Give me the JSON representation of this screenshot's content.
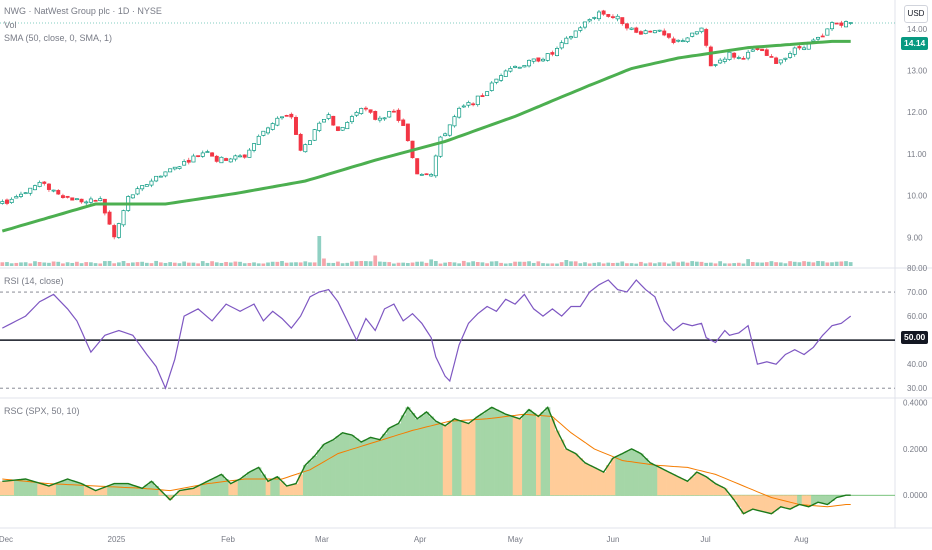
{
  "legend": {
    "title": "NWG · NatWest Group plc · 1D · NYSE",
    "vol": "Vol",
    "sma": "SMA (50, close, 0, SMA, 1)",
    "rsi": "RSI (14, close)",
    "rsc": "RSC (SPX, 50, 10)"
  },
  "toolbar": {
    "currency": "USD"
  },
  "price_tag": "14.14",
  "rsi_tag": "50.00",
  "colors": {
    "up": "#089981",
    "down": "#f23645",
    "sma": "#4caf50",
    "rsi": "#7e57c2",
    "rsc_line": "#1b7a1b",
    "rsc_signal": "#f57c00",
    "fill_pos": "#a5d6a7",
    "fill_neg": "#ffcc99"
  },
  "chart_data": [
    {
      "type": "candlestick",
      "x_ticks": [
        "Dec",
        "2025",
        "Feb",
        "Mar",
        "Apr",
        "May",
        "Jun",
        "Jul",
        "Aug"
      ],
      "y_ticks": [
        "9.00",
        "10.00",
        "11.00",
        "12.00",
        "13.00",
        "14.00"
      ],
      "ylim": [
        8.6,
        14.5
      ],
      "close_anchors": [
        [
          0,
          9.8
        ],
        [
          8,
          10.3
        ],
        [
          14,
          9.95
        ],
        [
          18,
          9.85
        ],
        [
          21,
          9.9
        ],
        [
          24,
          9.0
        ],
        [
          27,
          9.95
        ],
        [
          33,
          10.45
        ],
        [
          39,
          10.8
        ],
        [
          44,
          11.1
        ],
        [
          46,
          10.85
        ],
        [
          52,
          10.95
        ],
        [
          56,
          11.55
        ],
        [
          59,
          11.85
        ],
        [
          62,
          11.9
        ],
        [
          64,
          11.05
        ],
        [
          70,
          12.0
        ],
        [
          72,
          11.5
        ],
        [
          77,
          12.15
        ],
        [
          80,
          11.85
        ],
        [
          84,
          12.0
        ],
        [
          86,
          11.65
        ],
        [
          89,
          10.55
        ],
        [
          92,
          10.55
        ],
        [
          94,
          11.35
        ],
        [
          98,
          12.05
        ],
        [
          103,
          12.4
        ],
        [
          108,
          13.05
        ],
        [
          112,
          13.15
        ],
        [
          118,
          13.4
        ],
        [
          124,
          14.05
        ],
        [
          128,
          14.4
        ],
        [
          132,
          14.25
        ],
        [
          136,
          13.9
        ],
        [
          140,
          14.0
        ],
        [
          144,
          13.65
        ],
        [
          148,
          13.85
        ],
        [
          150,
          14.0
        ],
        [
          152,
          13.1
        ],
        [
          156,
          13.4
        ],
        [
          158,
          13.3
        ],
        [
          162,
          13.5
        ],
        [
          166,
          13.2
        ],
        [
          170,
          13.5
        ],
        [
          176,
          13.8
        ],
        [
          178,
          14.14
        ]
      ],
      "sma_anchors": [
        [
          0,
          9.15
        ],
        [
          20,
          9.8
        ],
        [
          35,
          9.8
        ],
        [
          50,
          10.05
        ],
        [
          65,
          10.35
        ],
        [
          80,
          10.85
        ],
        [
          95,
          11.3
        ],
        [
          110,
          11.9
        ],
        [
          125,
          12.6
        ],
        [
          135,
          13.05
        ],
        [
          145,
          13.3
        ],
        [
          160,
          13.55
        ],
        [
          178,
          13.7
        ]
      ],
      "vol_up": [
        false,
        true,
        true,
        false,
        true,
        true,
        false,
        true,
        false,
        true,
        true,
        false,
        true,
        false,
        true,
        true,
        false,
        true,
        false,
        true,
        true,
        false,
        true,
        true,
        false,
        true,
        true,
        false,
        true,
        false,
        true,
        true,
        false,
        true,
        false,
        true,
        true,
        false,
        true,
        true,
        false,
        true,
        false,
        true,
        true,
        false,
        true,
        true,
        false,
        true,
        false,
        true,
        true,
        false,
        true,
        true,
        false,
        true,
        true,
        false,
        true,
        false,
        true,
        true,
        false,
        true,
        true,
        false,
        true,
        false,
        true,
        true,
        false,
        true,
        true,
        false,
        true,
        false,
        true,
        true,
        false,
        true,
        true,
        false,
        true,
        false,
        true,
        true,
        false,
        true,
        true,
        false,
        true,
        true,
        false,
        true,
        false,
        true,
        true,
        false,
        true,
        true,
        false,
        true,
        false,
        true,
        true,
        false,
        true,
        true,
        false,
        true,
        false,
        true,
        true,
        false,
        true,
        true,
        false,
        true,
        false,
        true,
        true,
        false,
        true,
        true,
        false,
        true,
        true,
        false,
        true,
        false,
        true,
        true,
        false,
        true,
        true,
        false,
        true,
        false,
        true,
        true,
        false,
        true,
        true,
        false,
        true,
        false,
        true,
        true,
        false,
        true,
        true,
        false,
        true,
        true,
        false,
        true,
        false,
        true,
        true,
        false,
        true,
        true,
        false,
        true,
        false,
        true,
        true,
        false,
        true,
        true,
        false,
        true,
        false,
        true,
        true
      ],
      "vol_spikes": {
        "68": 10,
        "80": 3.5,
        "69": 2.5,
        "92": 2.2,
        "121": 2.0,
        "160": 2.3
      }
    },
    {
      "type": "line",
      "name": "RSI (14, close)",
      "y_ticks": [
        "30.00",
        "40.00",
        "50.00",
        "60.00",
        "70.00",
        "80.00"
      ],
      "ylim": [
        28,
        80
      ],
      "bands": [
        30,
        50,
        70
      ],
      "rsi_anchors": [
        [
          0,
          55
        ],
        [
          5,
          60
        ],
        [
          8,
          66
        ],
        [
          11,
          69
        ],
        [
          14,
          63
        ],
        [
          16,
          58
        ],
        [
          19,
          45
        ],
        [
          22,
          52
        ],
        [
          25,
          54
        ],
        [
          28,
          52
        ],
        [
          31,
          44
        ],
        [
          33,
          39
        ],
        [
          35,
          30
        ],
        [
          37,
          42
        ],
        [
          39,
          60
        ],
        [
          42,
          63
        ],
        [
          45,
          58
        ],
        [
          48,
          65
        ],
        [
          51,
          62
        ],
        [
          54,
          65
        ],
        [
          56,
          58
        ],
        [
          58,
          62
        ],
        [
          60,
          59
        ],
        [
          62,
          55
        ],
        [
          64,
          60
        ],
        [
          66,
          68
        ],
        [
          68,
          70
        ],
        [
          70,
          71
        ],
        [
          72,
          66
        ],
        [
          74,
          58
        ],
        [
          76,
          50
        ],
        [
          78,
          59
        ],
        [
          80,
          54
        ],
        [
          82,
          63
        ],
        [
          84,
          65
        ],
        [
          86,
          58
        ],
        [
          88,
          61
        ],
        [
          90,
          57
        ],
        [
          92,
          51
        ],
        [
          93,
          43
        ],
        [
          95,
          35
        ],
        [
          96,
          33
        ],
        [
          98,
          48
        ],
        [
          100,
          57
        ],
        [
          102,
          61
        ],
        [
          104,
          64
        ],
        [
          106,
          62
        ],
        [
          108,
          67
        ],
        [
          110,
          65
        ],
        [
          112,
          69
        ],
        [
          114,
          63
        ],
        [
          116,
          60
        ],
        [
          118,
          63
        ],
        [
          120,
          60
        ],
        [
          122,
          64
        ],
        [
          124,
          64
        ],
        [
          126,
          70
        ],
        [
          128,
          73
        ],
        [
          130,
          75
        ],
        [
          132,
          71
        ],
        [
          134,
          70
        ],
        [
          136,
          75
        ],
        [
          138,
          71
        ],
        [
          140,
          68
        ],
        [
          142,
          58
        ],
        [
          144,
          54
        ],
        [
          146,
          57
        ],
        [
          148,
          56
        ],
        [
          150,
          57
        ],
        [
          151,
          51
        ],
        [
          153,
          49
        ],
        [
          155,
          54
        ],
        [
          156,
          52
        ],
        [
          158,
          53
        ],
        [
          160,
          56
        ],
        [
          162,
          40
        ],
        [
          164,
          41
        ],
        [
          166,
          40
        ],
        [
          168,
          44
        ],
        [
          170,
          46
        ],
        [
          172,
          44
        ],
        [
          174,
          47
        ],
        [
          176,
          52
        ],
        [
          178,
          56
        ],
        [
          180,
          57
        ],
        [
          182,
          60
        ]
      ]
    },
    {
      "type": "area",
      "name": "RSC (SPX, 50, 10)",
      "y_ticks": [
        "0.0000",
        "0.2000",
        "0.4000"
      ],
      "ylim": [
        -0.12,
        0.42
      ],
      "rsc_anchors": [
        [
          0,
          0.06
        ],
        [
          5,
          0.07
        ],
        [
          10,
          0.04
        ],
        [
          14,
          0.07
        ],
        [
          17,
          0.05
        ],
        [
          20,
          0.02
        ],
        [
          24,
          0.05
        ],
        [
          27,
          0.05
        ],
        [
          30,
          0.03
        ],
        [
          32,
          0.06
        ],
        [
          34,
          0.02
        ],
        [
          36,
          -0.02
        ],
        [
          38,
          0.02
        ],
        [
          41,
          0.03
        ],
        [
          44,
          0.06
        ],
        [
          47,
          0.09
        ],
        [
          49,
          0.05
        ],
        [
          51,
          0.07
        ],
        [
          53,
          0.1
        ],
        [
          55,
          0.12
        ],
        [
          57,
          0.06
        ],
        [
          59,
          0.08
        ],
        [
          61,
          0.04
        ],
        [
          63,
          0.05
        ],
        [
          65,
          0.13
        ],
        [
          67,
          0.17
        ],
        [
          69,
          0.22
        ],
        [
          71,
          0.24
        ],
        [
          73,
          0.27
        ],
        [
          75,
          0.26
        ],
        [
          77,
          0.23
        ],
        [
          79,
          0.25
        ],
        [
          81,
          0.24
        ],
        [
          83,
          0.29
        ],
        [
          85,
          0.31
        ],
        [
          87,
          0.38
        ],
        [
          89,
          0.33
        ],
        [
          91,
          0.36
        ],
        [
          93,
          0.32
        ],
        [
          95,
          0.3
        ],
        [
          97,
          0.33
        ],
        [
          100,
          0.31
        ],
        [
          102,
          0.34
        ],
        [
          105,
          0.38
        ],
        [
          108,
          0.35
        ],
        [
          111,
          0.33
        ],
        [
          113,
          0.37
        ],
        [
          115,
          0.34
        ],
        [
          117,
          0.38
        ],
        [
          119,
          0.28
        ],
        [
          121,
          0.2
        ],
        [
          123,
          0.18
        ],
        [
          125,
          0.14
        ],
        [
          127,
          0.12
        ],
        [
          129,
          0.1
        ],
        [
          131,
          0.16
        ],
        [
          133,
          0.18
        ],
        [
          135,
          0.2
        ],
        [
          137,
          0.18
        ],
        [
          139,
          0.14
        ],
        [
          141,
          0.12
        ],
        [
          143,
          0.1
        ],
        [
          145,
          0.08
        ],
        [
          147,
          0.06
        ],
        [
          149,
          0.1
        ],
        [
          151,
          0.08
        ],
        [
          153,
          0.05
        ],
        [
          155,
          0.03
        ],
        [
          157,
          -0.02
        ],
        [
          159,
          -0.08
        ],
        [
          161,
          -0.06
        ],
        [
          163,
          -0.07
        ],
        [
          165,
          -0.08
        ],
        [
          167,
          -0.05
        ],
        [
          169,
          -0.06
        ],
        [
          171,
          -0.04
        ],
        [
          173,
          -0.05
        ],
        [
          175,
          -0.03
        ],
        [
          177,
          -0.04
        ],
        [
          179,
          -0.01
        ],
        [
          181,
          0.0
        ]
      ],
      "signal_anchors": [
        [
          0,
          0.07
        ],
        [
          10,
          0.05
        ],
        [
          20,
          0.04
        ],
        [
          30,
          0.03
        ],
        [
          36,
          0.02
        ],
        [
          44,
          0.05
        ],
        [
          52,
          0.07
        ],
        [
          60,
          0.07
        ],
        [
          66,
          0.11
        ],
        [
          72,
          0.18
        ],
        [
          80,
          0.23
        ],
        [
          88,
          0.28
        ],
        [
          96,
          0.32
        ],
        [
          104,
          0.33
        ],
        [
          112,
          0.35
        ],
        [
          118,
          0.34
        ],
        [
          122,
          0.27
        ],
        [
          127,
          0.2
        ],
        [
          133,
          0.15
        ],
        [
          140,
          0.13
        ],
        [
          147,
          0.12
        ],
        [
          153,
          0.09
        ],
        [
          159,
          0.04
        ],
        [
          165,
          -0.01
        ],
        [
          171,
          -0.04
        ],
        [
          177,
          -0.05
        ],
        [
          181,
          -0.04
        ]
      ]
    }
  ]
}
